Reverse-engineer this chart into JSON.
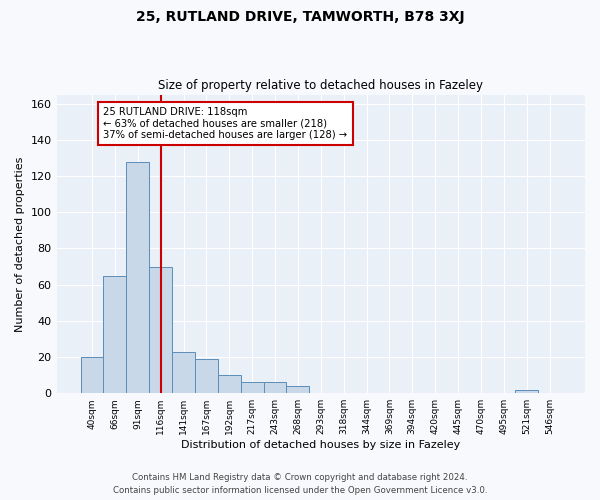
{
  "title": "25, RUTLAND DRIVE, TAMWORTH, B78 3XJ",
  "subtitle": "Size of property relative to detached houses in Fazeley",
  "xlabel": "Distribution of detached houses by size in Fazeley",
  "ylabel": "Number of detached properties",
  "categories": [
    "40sqm",
    "66sqm",
    "91sqm",
    "116sqm",
    "141sqm",
    "167sqm",
    "192sqm",
    "217sqm",
    "243sqm",
    "268sqm",
    "293sqm",
    "318sqm",
    "344sqm",
    "369sqm",
    "394sqm",
    "420sqm",
    "445sqm",
    "470sqm",
    "495sqm",
    "521sqm",
    "546sqm"
  ],
  "values": [
    20,
    65,
    128,
    70,
    23,
    19,
    10,
    6,
    6,
    4,
    0,
    0,
    0,
    0,
    0,
    0,
    0,
    0,
    0,
    2,
    0
  ],
  "bar_color": "#c8d8e8",
  "bar_edge_color": "#5b8db8",
  "vline_x": 3,
  "vline_color": "#cc0000",
  "annotation_text": "25 RUTLAND DRIVE: 118sqm\n← 63% of detached houses are smaller (218)\n37% of semi-detached houses are larger (128) →",
  "annotation_box_color": "#ffffff",
  "annotation_box_edge_color": "#cc0000",
  "ylim": [
    0,
    165
  ],
  "yticks": [
    0,
    20,
    40,
    60,
    80,
    100,
    120,
    140,
    160
  ],
  "background_color": "#eaf0f8",
  "grid_color": "#ffffff",
  "fig_bg_color": "#f8f9fc",
  "footer_line1": "Contains HM Land Registry data © Crown copyright and database right 2024.",
  "footer_line2": "Contains public sector information licensed under the Open Government Licence v3.0."
}
